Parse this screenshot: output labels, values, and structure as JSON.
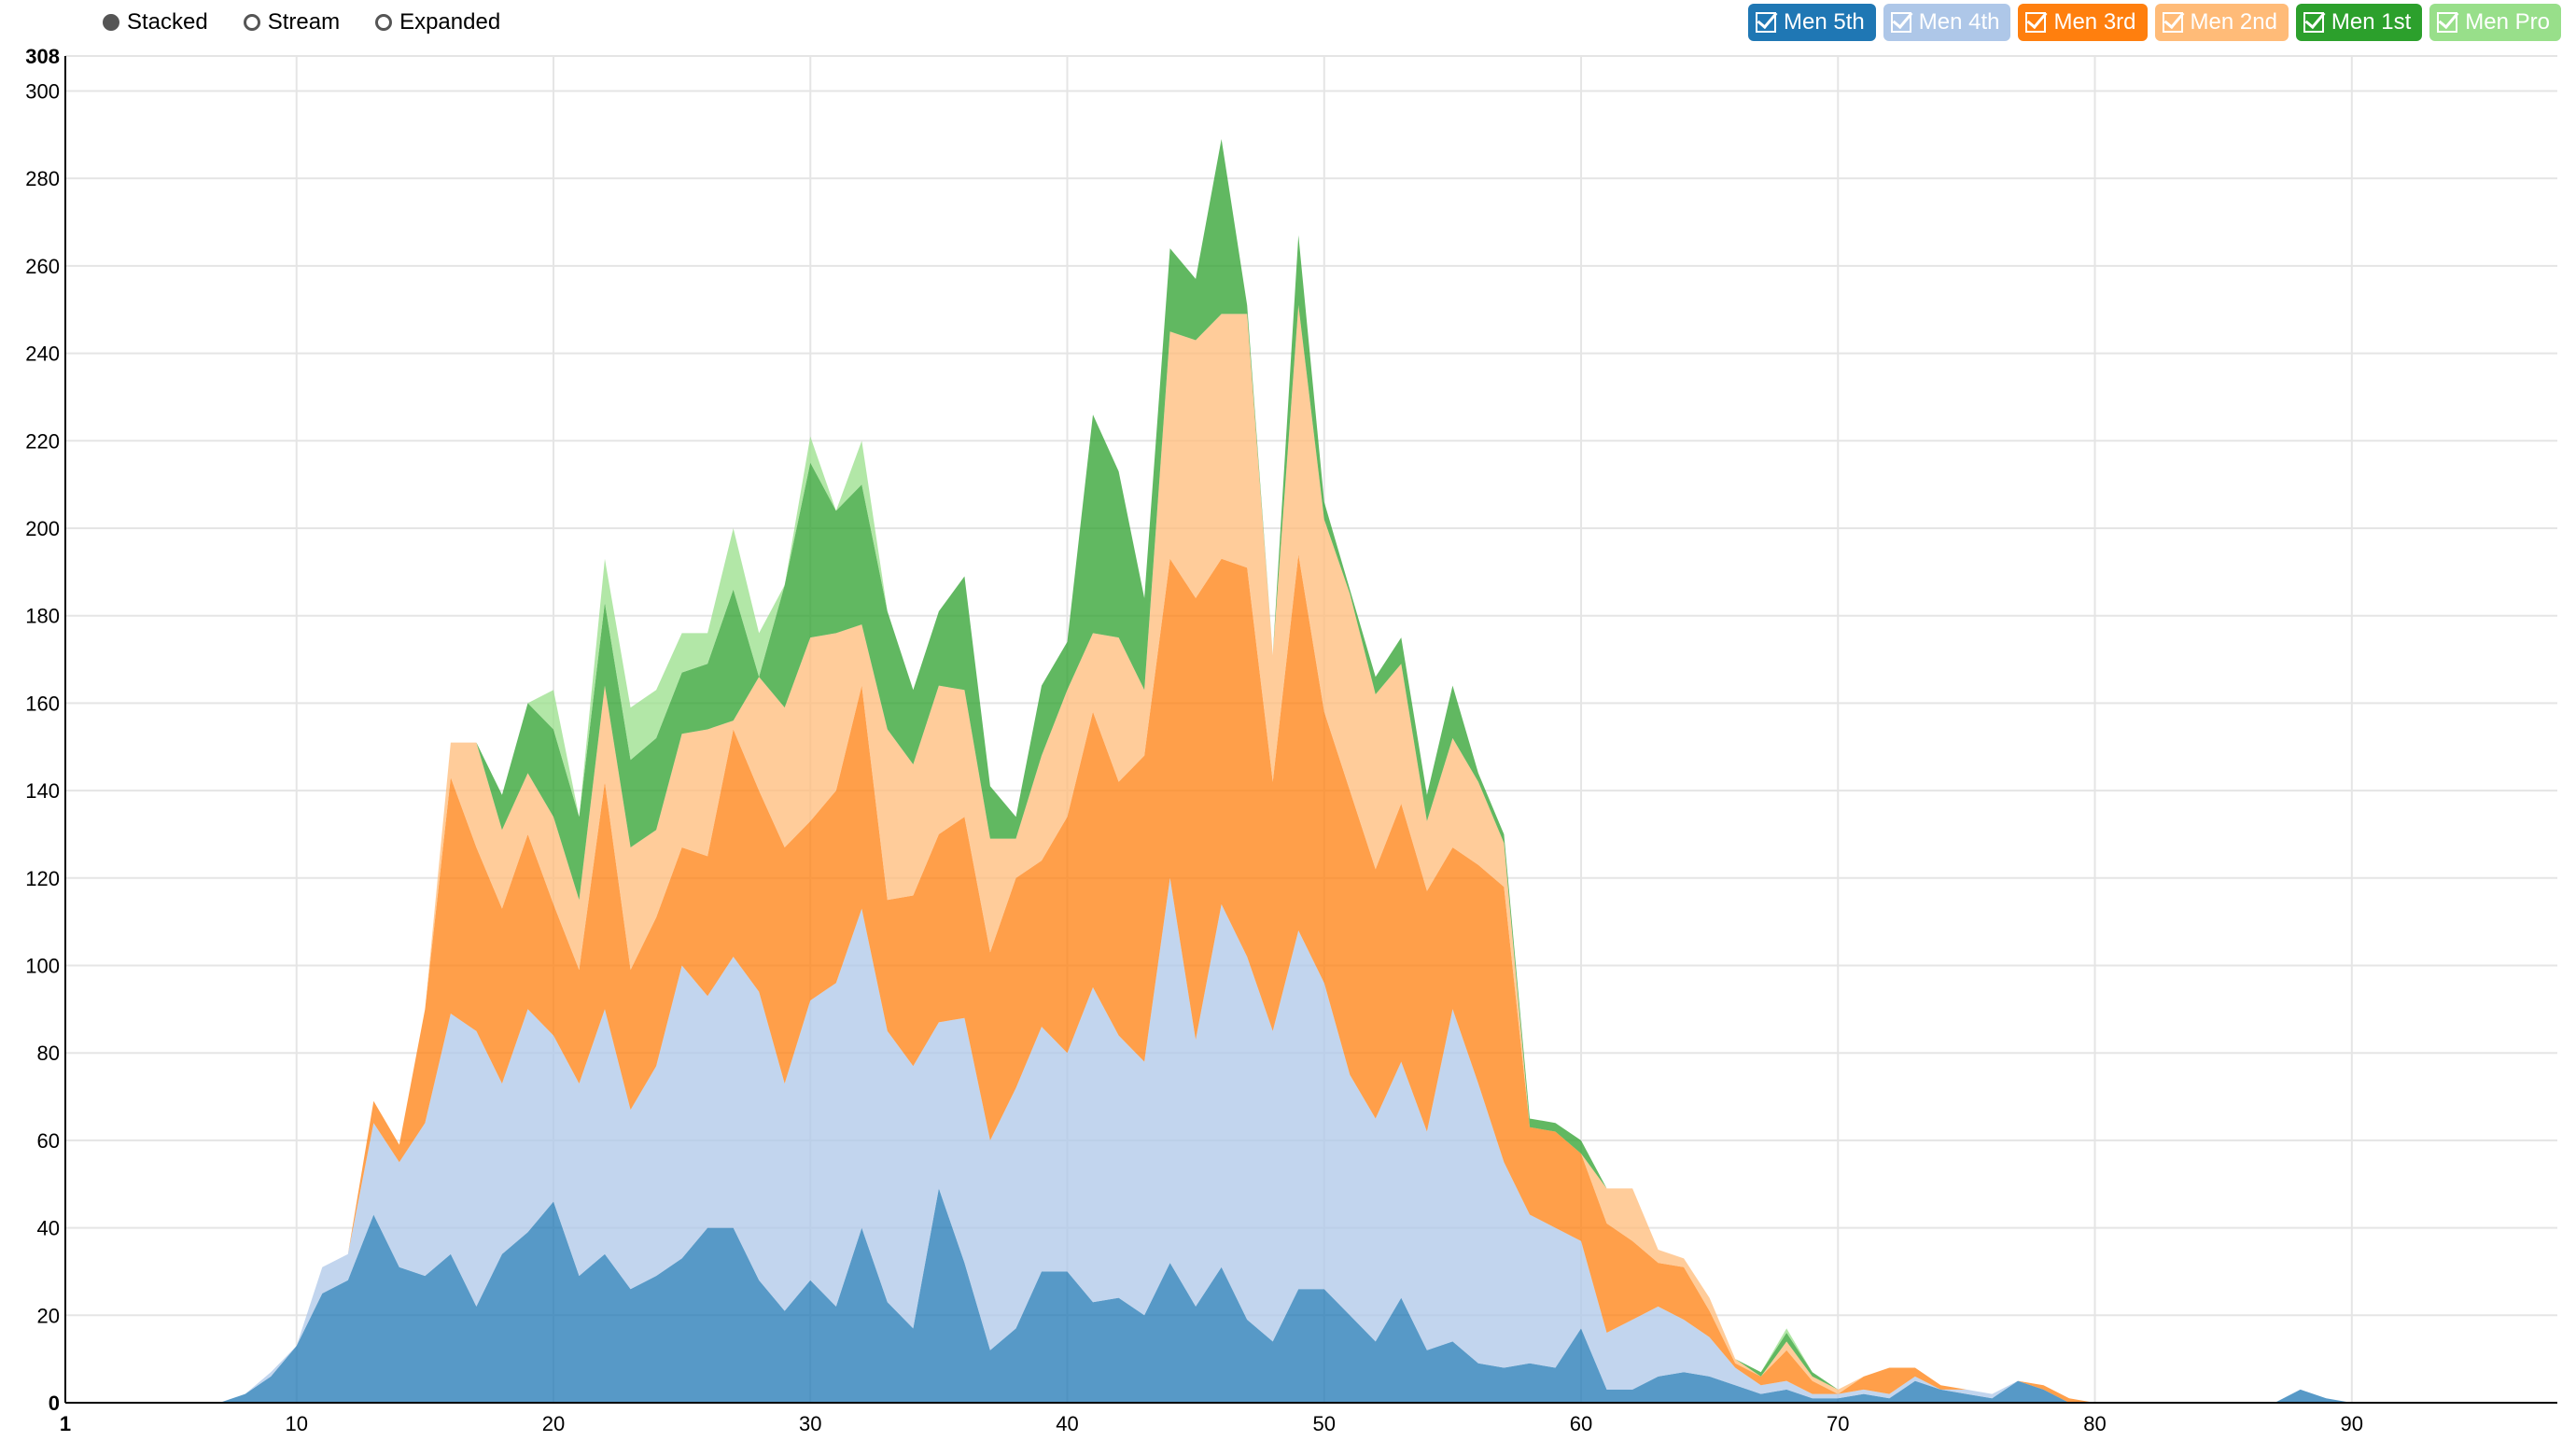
{
  "controls": {
    "modes": [
      {
        "label": "Stacked",
        "selected": true
      },
      {
        "label": "Stream",
        "selected": false
      },
      {
        "label": "Expanded",
        "selected": false
      }
    ]
  },
  "legend": [
    {
      "label": "Men 5th",
      "color": "#1f77b4"
    },
    {
      "label": "Men 4th",
      "color": "#aec7e8"
    },
    {
      "label": "Men 3rd",
      "color": "#ff7f0e"
    },
    {
      "label": "Men 2nd",
      "color": "#ffbb78"
    },
    {
      "label": "Men 1st",
      "color": "#2ca02c"
    },
    {
      "label": "Men Pro",
      "color": "#98df8a"
    }
  ],
  "chart_data": {
    "type": "area",
    "stacked": true,
    "grid": true,
    "legend_position": "top-right",
    "xlim": [
      1,
      98
    ],
    "ylim": [
      0,
      308
    ],
    "x_ticks": [
      1,
      10,
      20,
      30,
      40,
      50,
      60,
      70,
      80,
      90
    ],
    "y_ticks": [
      0,
      20,
      40,
      60,
      80,
      100,
      120,
      140,
      160,
      180,
      200,
      220,
      240,
      260,
      280,
      300,
      308
    ],
    "x": [
      7,
      8,
      9,
      10,
      11,
      12,
      13,
      14,
      15,
      16,
      17,
      18,
      19,
      20,
      21,
      22,
      23,
      24,
      25,
      26,
      27,
      28,
      29,
      30,
      31,
      32,
      33,
      34,
      35,
      36,
      37,
      38,
      39,
      40,
      41,
      42,
      43,
      44,
      45,
      46,
      47,
      48,
      49,
      50,
      51,
      52,
      53,
      54,
      55,
      56,
      57,
      58,
      59,
      60,
      61,
      62,
      63,
      64,
      65,
      66,
      67,
      68,
      69,
      70,
      71,
      72,
      73,
      74,
      75,
      76,
      77,
      78,
      79,
      80,
      81,
      82,
      83,
      84,
      85,
      86,
      87,
      88,
      89,
      90
    ],
    "series": [
      {
        "name": "Men 5th",
        "color": "#1f77b4",
        "values": [
          0,
          2,
          6,
          13,
          25,
          28,
          43,
          31,
          29,
          34,
          22,
          34,
          39,
          46,
          29,
          34,
          26,
          29,
          33,
          40,
          40,
          28,
          21,
          28,
          22,
          40,
          23,
          17,
          49,
          32,
          12,
          17,
          30,
          30,
          23,
          24,
          20,
          32,
          22,
          31,
          19,
          14,
          26,
          26,
          20,
          14,
          24,
          12,
          14,
          9,
          8,
          9,
          8,
          17,
          3,
          3,
          6,
          7,
          6,
          4,
          2,
          3,
          1,
          1,
          2,
          1,
          5,
          3,
          2,
          1,
          5,
          3,
          0,
          0,
          0,
          0,
          0,
          0,
          0,
          0,
          0,
          3,
          1,
          0
        ]
      },
      {
        "name": "Men 4th",
        "color": "#aec7e8",
        "values": [
          0,
          0,
          1,
          0,
          6,
          6,
          21,
          24,
          35,
          55,
          63,
          39,
          51,
          38,
          44,
          56,
          41,
          48,
          67,
          53,
          62,
          66,
          52,
          64,
          74,
          73,
          62,
          60,
          38,
          56,
          48,
          55,
          56,
          50,
          72,
          60,
          58,
          88,
          61,
          83,
          83,
          71,
          82,
          70,
          55,
          51,
          54,
          50,
          76,
          64,
          47,
          34,
          32,
          20,
          13,
          16,
          16,
          12,
          9,
          4,
          2,
          2,
          1,
          1,
          1,
          1,
          1,
          0,
          1,
          1,
          0,
          0,
          0,
          0,
          0,
          0,
          0,
          0,
          0,
          0,
          0,
          0,
          0,
          0
        ]
      },
      {
        "name": "Men 3rd",
        "color": "#ff7f0e",
        "values": [
          0,
          0,
          0,
          0,
          0,
          0,
          5,
          4,
          26,
          54,
          42,
          40,
          40,
          30,
          26,
          52,
          32,
          34,
          27,
          32,
          52,
          46,
          54,
          41,
          44,
          51,
          30,
          39,
          43,
          46,
          43,
          48,
          38,
          54,
          63,
          58,
          70,
          73,
          101,
          79,
          89,
          57,
          86,
          62,
          65,
          57,
          59,
          55,
          37,
          50,
          63,
          20,
          22,
          20,
          25,
          18,
          10,
          12,
          6,
          1,
          2,
          7,
          3,
          0,
          3,
          6,
          2,
          1,
          0,
          0,
          0,
          1,
          1,
          0,
          0,
          0,
          0,
          0,
          0,
          0,
          0,
          0,
          0,
          0
        ]
      },
      {
        "name": "Men 2nd",
        "color": "#ffbb78",
        "values": [
          0,
          0,
          0,
          0,
          0,
          0,
          0,
          0,
          0,
          8,
          24,
          18,
          14,
          20,
          16,
          22,
          28,
          20,
          26,
          29,
          2,
          26,
          32,
          42,
          36,
          14,
          39,
          30,
          34,
          29,
          26,
          9,
          24,
          29,
          18,
          33,
          15,
          52,
          59,
          56,
          58,
          29,
          57,
          44,
          45,
          40,
          32,
          16,
          25,
          19,
          10,
          0,
          0,
          0,
          8,
          12,
          3,
          2,
          3,
          1,
          0,
          2,
          1,
          1,
          0,
          0,
          0,
          0,
          0,
          0,
          0,
          0,
          0,
          0,
          0,
          0,
          0,
          0,
          0,
          0,
          0,
          0,
          0,
          0
        ]
      },
      {
        "name": "Men 1st",
        "color": "#2ca02c",
        "values": [
          0,
          0,
          0,
          0,
          0,
          0,
          0,
          0,
          0,
          0,
          0,
          8,
          16,
          20,
          19,
          19,
          20,
          21,
          14,
          15,
          30,
          0,
          28,
          40,
          28,
          32,
          27,
          17,
          17,
          26,
          12,
          5,
          16,
          11,
          50,
          38,
          21,
          19,
          14,
          40,
          2,
          0,
          16,
          4,
          1,
          4,
          6,
          6,
          12,
          2,
          2,
          2,
          2,
          3,
          0,
          0,
          0,
          0,
          0,
          0,
          1,
          2,
          1,
          0,
          0,
          0,
          0,
          0,
          0,
          0,
          0,
          0,
          0,
          0,
          0,
          0,
          0,
          0,
          0,
          0,
          0,
          0,
          0,
          0
        ]
      },
      {
        "name": "Men Pro",
        "color": "#98df8a",
        "values": [
          0,
          0,
          0,
          0,
          0,
          0,
          0,
          0,
          0,
          0,
          0,
          0,
          0,
          9,
          0,
          10,
          12,
          11,
          9,
          7,
          14,
          10,
          0,
          6,
          0,
          10,
          0,
          0,
          0,
          0,
          0,
          0,
          0,
          0,
          0,
          0,
          0,
          0,
          0,
          0,
          0,
          0,
          0,
          0,
          0,
          0,
          0,
          0,
          0,
          0,
          0,
          0,
          0,
          0,
          0,
          0,
          0,
          0,
          0,
          0,
          0,
          1,
          0,
          0,
          0,
          0,
          0,
          0,
          0,
          0,
          0,
          0,
          0,
          0,
          0,
          0,
          0,
          0,
          0,
          0,
          0,
          0,
          0,
          0
        ]
      }
    ]
  }
}
